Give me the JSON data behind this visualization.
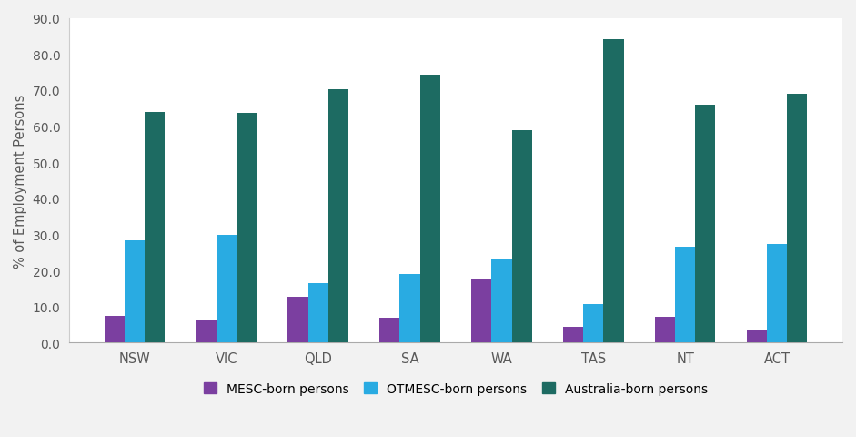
{
  "categories": [
    "NSW",
    "VIC",
    "QLD",
    "SA",
    "WA",
    "TAS",
    "NT",
    "ACT"
  ],
  "series": {
    "MESC-born persons": [
      7.5,
      6.3,
      12.8,
      7.0,
      17.5,
      4.5,
      7.2,
      3.6
    ],
    "OTMESC-born persons": [
      28.3,
      29.8,
      16.6,
      19.0,
      23.3,
      10.7,
      26.6,
      27.3
    ],
    "Australia-born persons": [
      64.0,
      63.7,
      70.2,
      74.3,
      58.8,
      84.2,
      65.8,
      69.0
    ]
  },
  "colors": {
    "MESC-born persons": "#7B3FA0",
    "OTMESC-born persons": "#29ABE2",
    "Australia-born persons": "#1D6B62"
  },
  "ylabel": "% of Employment Persons",
  "ylim": [
    0,
    90
  ],
  "yticks": [
    0.0,
    10.0,
    20.0,
    30.0,
    40.0,
    50.0,
    60.0,
    70.0,
    80.0,
    90.0
  ],
  "background_color": "#ffffff",
  "outer_background": "#f2f2f2",
  "legend_labels": [
    "MESC-born persons",
    "OTMESC-born persons",
    "Australia-born persons"
  ],
  "bar_width": 0.22,
  "tick_color": "#595959",
  "label_color": "#595959"
}
